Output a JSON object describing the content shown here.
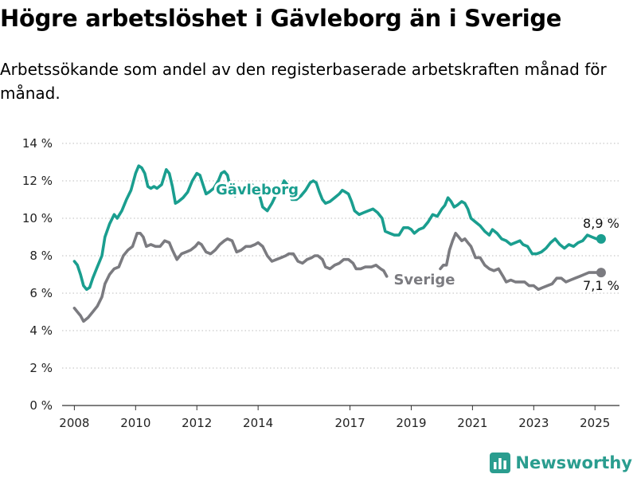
{
  "title": "Högre arbetslöshet i Gävleborg än i Sverige",
  "subtitle": "Arbetssökande som andel av den registerbaserade arbetskraften månad för månad.",
  "brand": {
    "name": "Newsworthy",
    "icon": "bar-chart-logo-icon",
    "color": "#2a9d8f"
  },
  "chart_data": {
    "type": "line",
    "title": "Högre arbetslöshet i Gävleborg än i Sverige",
    "xlabel": "",
    "ylabel": "",
    "xlim": [
      2007.6,
      2025.8
    ],
    "ylim": [
      0,
      14
    ],
    "grid": "horizontal-dotted",
    "y_ticks": [
      0,
      2,
      4,
      6,
      8,
      10,
      12,
      14
    ],
    "y_tick_labels": [
      "0 %",
      "2 %",
      "4 %",
      "6 %",
      "8 %",
      "10 %",
      "12 %",
      "14 %"
    ],
    "x_ticks": [
      2008,
      2010,
      2012,
      2014,
      2017,
      2019,
      2021,
      2023,
      2025
    ],
    "x_tick_labels": [
      "2008",
      "2010",
      "2012",
      "2014",
      "2017",
      "2019",
      "2021",
      "2023",
      "2025"
    ],
    "series": [
      {
        "name": "Gävleborg",
        "color": "#1a9e8f",
        "end_label": "8,9 %",
        "points": [
          [
            2008.0,
            7.7
          ],
          [
            2008.1,
            7.5
          ],
          [
            2008.2,
            7.0
          ],
          [
            2008.3,
            6.4
          ],
          [
            2008.4,
            6.2
          ],
          [
            2008.5,
            6.3
          ],
          [
            2008.6,
            6.8
          ],
          [
            2008.75,
            7.4
          ],
          [
            2008.9,
            8.0
          ],
          [
            2009.0,
            9.0
          ],
          [
            2009.15,
            9.7
          ],
          [
            2009.3,
            10.2
          ],
          [
            2009.4,
            10.0
          ],
          [
            2009.55,
            10.4
          ],
          [
            2009.7,
            11.0
          ],
          [
            2009.85,
            11.5
          ],
          [
            2010.0,
            12.4
          ],
          [
            2010.1,
            12.8
          ],
          [
            2010.2,
            12.7
          ],
          [
            2010.3,
            12.4
          ],
          [
            2010.4,
            11.7
          ],
          [
            2010.5,
            11.6
          ],
          [
            2010.6,
            11.7
          ],
          [
            2010.7,
            11.6
          ],
          [
            2010.85,
            11.8
          ],
          [
            2011.0,
            12.6
          ],
          [
            2011.1,
            12.4
          ],
          [
            2011.2,
            11.7
          ],
          [
            2011.3,
            10.8
          ],
          [
            2011.4,
            10.9
          ],
          [
            2011.55,
            11.1
          ],
          [
            2011.7,
            11.4
          ],
          [
            2011.85,
            12.0
          ],
          [
            2012.0,
            12.4
          ],
          [
            2012.1,
            12.3
          ],
          [
            2012.2,
            11.8
          ],
          [
            2012.3,
            11.3
          ],
          [
            2012.4,
            11.4
          ],
          [
            2012.55,
            11.6
          ],
          [
            2012.7,
            12.0
          ],
          [
            2012.8,
            12.4
          ],
          [
            2012.9,
            12.5
          ],
          [
            2013.0,
            12.3
          ],
          [
            2013.1,
            11.6
          ],
          [
            2013.25,
            11.2
          ],
          [
            2013.45,
            11.5
          ],
          [
            2013.65,
            11.6
          ],
          [
            2013.8,
            11.8
          ],
          [
            2013.95,
            11.6
          ],
          [
            2014.05,
            11.2
          ],
          [
            2014.15,
            10.6
          ],
          [
            2014.3,
            10.4
          ],
          [
            2014.45,
            10.8
          ],
          [
            2014.6,
            11.3
          ],
          [
            2014.75,
            11.6
          ],
          [
            2014.85,
            12.0
          ],
          [
            2014.95,
            11.8
          ],
          [
            2015.1,
            11.0
          ],
          [
            2015.25,
            11.0
          ],
          [
            2015.4,
            11.2
          ],
          [
            2015.55,
            11.5
          ],
          [
            2015.7,
            11.9
          ],
          [
            2015.8,
            12.0
          ],
          [
            2015.9,
            11.9
          ],
          [
            2016.0,
            11.4
          ],
          [
            2016.1,
            11.0
          ],
          [
            2016.2,
            10.8
          ],
          [
            2016.35,
            10.9
          ],
          [
            2016.5,
            11.1
          ],
          [
            2016.65,
            11.3
          ],
          [
            2016.75,
            11.5
          ],
          [
            2016.85,
            11.4
          ],
          [
            2016.95,
            11.3
          ],
          [
            2017.05,
            10.9
          ],
          [
            2017.15,
            10.4
          ],
          [
            2017.3,
            10.2
          ],
          [
            2017.45,
            10.3
          ],
          [
            2017.6,
            10.4
          ],
          [
            2017.75,
            10.5
          ],
          [
            2017.9,
            10.3
          ],
          [
            2018.05,
            10.0
          ],
          [
            2018.15,
            9.3
          ],
          [
            2018.3,
            9.2
          ],
          [
            2018.45,
            9.1
          ],
          [
            2018.6,
            9.1
          ],
          [
            2018.75,
            9.5
          ],
          [
            2018.9,
            9.5
          ],
          [
            2019.0,
            9.4
          ],
          [
            2019.1,
            9.2
          ],
          [
            2019.25,
            9.4
          ],
          [
            2019.4,
            9.5
          ],
          [
            2019.55,
            9.8
          ],
          [
            2019.7,
            10.2
          ],
          [
            2019.85,
            10.1
          ],
          [
            2020.0,
            10.5
          ],
          [
            2020.1,
            10.7
          ],
          [
            2020.2,
            11.1
          ],
          [
            2020.3,
            10.9
          ],
          [
            2020.4,
            10.6
          ],
          [
            2020.5,
            10.7
          ],
          [
            2020.65,
            10.9
          ],
          [
            2020.75,
            10.8
          ],
          [
            2020.85,
            10.5
          ],
          [
            2020.95,
            10.0
          ],
          [
            2021.1,
            9.8
          ],
          [
            2021.25,
            9.6
          ],
          [
            2021.4,
            9.3
          ],
          [
            2021.55,
            9.1
          ],
          [
            2021.65,
            9.4
          ],
          [
            2021.8,
            9.2
          ],
          [
            2021.95,
            8.9
          ],
          [
            2022.1,
            8.8
          ],
          [
            2022.25,
            8.6
          ],
          [
            2022.4,
            8.7
          ],
          [
            2022.55,
            8.8
          ],
          [
            2022.65,
            8.6
          ],
          [
            2022.8,
            8.5
          ],
          [
            2022.95,
            8.1
          ],
          [
            2023.1,
            8.1
          ],
          [
            2023.25,
            8.2
          ],
          [
            2023.4,
            8.4
          ],
          [
            2023.55,
            8.7
          ],
          [
            2023.7,
            8.9
          ],
          [
            2023.85,
            8.6
          ],
          [
            2024.0,
            8.4
          ],
          [
            2024.15,
            8.6
          ],
          [
            2024.3,
            8.5
          ],
          [
            2024.45,
            8.7
          ],
          [
            2024.6,
            8.8
          ],
          [
            2024.75,
            9.1
          ],
          [
            2024.9,
            9.0
          ],
          [
            2025.05,
            8.9
          ],
          [
            2025.2,
            8.9
          ]
        ]
      },
      {
        "name": "Sverige",
        "color": "#7b7b80",
        "end_label": "7,1 %",
        "points": [
          [
            2008.0,
            5.2
          ],
          [
            2008.1,
            5.0
          ],
          [
            2008.2,
            4.8
          ],
          [
            2008.3,
            4.5
          ],
          [
            2008.45,
            4.7
          ],
          [
            2008.6,
            5.0
          ],
          [
            2008.75,
            5.3
          ],
          [
            2008.9,
            5.8
          ],
          [
            2009.0,
            6.5
          ],
          [
            2009.15,
            7.0
          ],
          [
            2009.3,
            7.3
          ],
          [
            2009.45,
            7.4
          ],
          [
            2009.6,
            8.0
          ],
          [
            2009.75,
            8.3
          ],
          [
            2009.9,
            8.5
          ],
          [
            2010.05,
            9.2
          ],
          [
            2010.15,
            9.2
          ],
          [
            2010.25,
            9.0
          ],
          [
            2010.35,
            8.5
          ],
          [
            2010.5,
            8.6
          ],
          [
            2010.65,
            8.5
          ],
          [
            2010.8,
            8.5
          ],
          [
            2010.95,
            8.8
          ],
          [
            2011.1,
            8.7
          ],
          [
            2011.2,
            8.3
          ],
          [
            2011.35,
            7.8
          ],
          [
            2011.5,
            8.1
          ],
          [
            2011.65,
            8.2
          ],
          [
            2011.8,
            8.3
          ],
          [
            2011.95,
            8.5
          ],
          [
            2012.05,
            8.7
          ],
          [
            2012.15,
            8.6
          ],
          [
            2012.3,
            8.2
          ],
          [
            2012.45,
            8.1
          ],
          [
            2012.6,
            8.3
          ],
          [
            2012.75,
            8.6
          ],
          [
            2012.9,
            8.8
          ],
          [
            2013.0,
            8.9
          ],
          [
            2013.15,
            8.8
          ],
          [
            2013.3,
            8.2
          ],
          [
            2013.45,
            8.3
          ],
          [
            2013.6,
            8.5
          ],
          [
            2013.75,
            8.5
          ],
          [
            2013.9,
            8.6
          ],
          [
            2014.0,
            8.7
          ],
          [
            2014.15,
            8.5
          ],
          [
            2014.3,
            8.0
          ],
          [
            2014.45,
            7.7
          ],
          [
            2014.6,
            7.8
          ],
          [
            2014.75,
            7.9
          ],
          [
            2014.9,
            8.0
          ],
          [
            2015.0,
            8.1
          ],
          [
            2015.15,
            8.1
          ],
          [
            2015.3,
            7.7
          ],
          [
            2015.45,
            7.6
          ],
          [
            2015.6,
            7.8
          ],
          [
            2015.75,
            7.9
          ],
          [
            2015.85,
            8.0
          ],
          [
            2015.95,
            8.0
          ],
          [
            2016.1,
            7.8
          ],
          [
            2016.2,
            7.4
          ],
          [
            2016.35,
            7.3
          ],
          [
            2016.5,
            7.5
          ],
          [
            2016.65,
            7.6
          ],
          [
            2016.8,
            7.8
          ],
          [
            2016.95,
            7.8
          ],
          [
            2017.1,
            7.6
          ],
          [
            2017.2,
            7.3
          ],
          [
            2017.35,
            7.3
          ],
          [
            2017.5,
            7.4
          ],
          [
            2017.7,
            7.4
          ],
          [
            2017.85,
            7.5
          ],
          [
            2018.0,
            7.3
          ],
          [
            2018.1,
            7.2
          ],
          [
            2018.2,
            6.9
          ],
          null,
          [
            2019.95,
            7.3
          ],
          [
            2020.05,
            7.5
          ],
          [
            2020.15,
            7.5
          ],
          [
            2020.25,
            8.3
          ],
          [
            2020.35,
            8.8
          ],
          [
            2020.45,
            9.2
          ],
          [
            2020.55,
            9.0
          ],
          [
            2020.65,
            8.8
          ],
          [
            2020.75,
            8.9
          ],
          [
            2020.85,
            8.7
          ],
          [
            2020.95,
            8.5
          ],
          [
            2021.1,
            7.9
          ],
          [
            2021.25,
            7.9
          ],
          [
            2021.4,
            7.5
          ],
          [
            2021.55,
            7.3
          ],
          [
            2021.7,
            7.2
          ],
          [
            2021.85,
            7.3
          ],
          [
            2022.0,
            6.9
          ],
          [
            2022.1,
            6.6
          ],
          [
            2022.25,
            6.7
          ],
          [
            2022.4,
            6.6
          ],
          [
            2022.55,
            6.6
          ],
          [
            2022.7,
            6.6
          ],
          [
            2022.85,
            6.4
          ],
          [
            2023.0,
            6.4
          ],
          [
            2023.15,
            6.2
          ],
          [
            2023.3,
            6.3
          ],
          [
            2023.45,
            6.4
          ],
          [
            2023.6,
            6.5
          ],
          [
            2023.75,
            6.8
          ],
          [
            2023.9,
            6.8
          ],
          [
            2024.05,
            6.6
          ],
          [
            2024.2,
            6.7
          ],
          [
            2024.35,
            6.8
          ],
          [
            2024.5,
            6.9
          ],
          [
            2024.65,
            7.0
          ],
          [
            2024.8,
            7.1
          ],
          [
            2024.95,
            7.1
          ],
          [
            2025.1,
            7.1
          ],
          [
            2025.2,
            7.1
          ]
        ]
      }
    ]
  }
}
